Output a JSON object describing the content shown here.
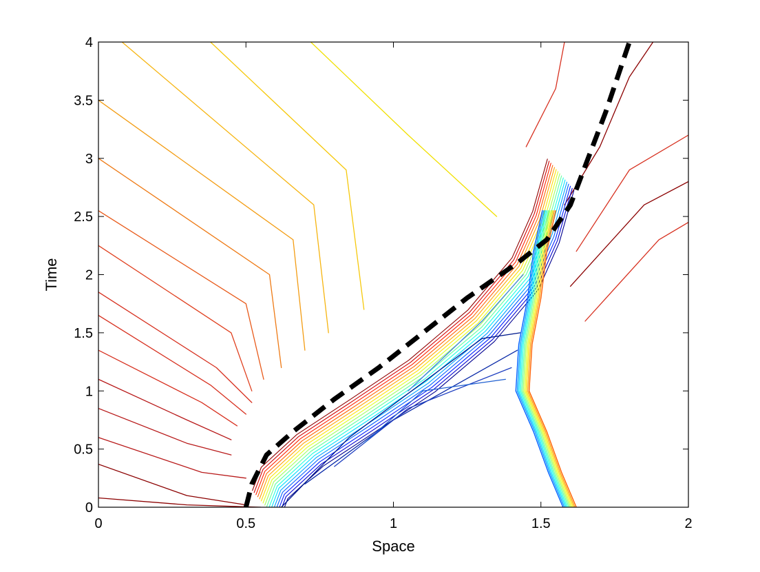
{
  "chart_data": {
    "type": "contour",
    "title": "",
    "xlabel": "Space",
    "ylabel": "Time",
    "xlim": [
      0,
      2
    ],
    "ylim": [
      0,
      4
    ],
    "xticks": [
      "0",
      "0.5",
      "1",
      "1.5",
      "2"
    ],
    "yticks": [
      "0",
      "0.5",
      "1",
      "1.5",
      "2",
      "2.5",
      "3",
      "3.5",
      "4"
    ],
    "xtick_values": [
      0,
      0.5,
      1,
      1.5,
      2
    ],
    "ytick_values": [
      0,
      0.5,
      1,
      1.5,
      2,
      2.5,
      3,
      3.5,
      4
    ],
    "grid": false,
    "colormap": "jet",
    "colors": {
      "dark_red": "#8b0000",
      "red": "#d7301f",
      "orange": "#f39c12",
      "yellow": "#f1e000",
      "cyan": "#00c8e6",
      "blue": "#1f5fd0",
      "dark_blue": "#001a8c",
      "dashed": "#000000"
    },
    "dashed_curve": [
      [
        0.5,
        0.0
      ],
      [
        0.52,
        0.2
      ],
      [
        0.57,
        0.45
      ],
      [
        0.66,
        0.65
      ],
      [
        0.8,
        0.93
      ],
      [
        0.95,
        1.2
      ],
      [
        1.1,
        1.5
      ],
      [
        1.25,
        1.8
      ],
      [
        1.42,
        2.1
      ],
      [
        1.52,
        2.3
      ],
      [
        1.6,
        2.6
      ],
      [
        1.66,
        3.0
      ],
      [
        1.72,
        3.4
      ],
      [
        1.8,
        4.0
      ]
    ],
    "shock_left_front": [
      [
        0.57,
        0.0
      ],
      [
        0.6,
        0.2
      ],
      [
        0.72,
        0.48
      ],
      [
        0.9,
        0.78
      ],
      [
        1.1,
        1.12
      ],
      [
        1.3,
        1.55
      ],
      [
        1.45,
        2.0
      ],
      [
        1.52,
        2.4
      ],
      [
        1.57,
        2.85
      ]
    ],
    "shock_right_front": [
      [
        1.6,
        0.0
      ],
      [
        1.55,
        0.3
      ],
      [
        1.5,
        0.65
      ],
      [
        1.44,
        1.0
      ],
      [
        1.45,
        1.4
      ],
      [
        1.48,
        1.8
      ],
      [
        1.5,
        2.2
      ],
      [
        1.53,
        2.55
      ]
    ],
    "red_family_lines": [
      [
        [
          0.0,
          0.08
        ],
        [
          0.3,
          0.02
        ],
        [
          0.55,
          0.0
        ]
      ],
      [
        [
          0.0,
          0.37
        ],
        [
          0.3,
          0.1
        ],
        [
          0.5,
          0.02
        ]
      ],
      [
        [
          0.0,
          0.6
        ],
        [
          0.35,
          0.3
        ],
        [
          0.5,
          0.25
        ]
      ],
      [
        [
          0.0,
          0.85
        ],
        [
          0.3,
          0.55
        ],
        [
          0.45,
          0.45
        ]
      ],
      [
        [
          0.0,
          1.1
        ],
        [
          0.3,
          0.75
        ],
        [
          0.45,
          0.58
        ]
      ],
      [
        [
          0.0,
          1.35
        ],
        [
          0.35,
          0.9
        ],
        [
          0.47,
          0.7
        ]
      ],
      [
        [
          0.0,
          1.65
        ],
        [
          0.38,
          1.05
        ],
        [
          0.5,
          0.8
        ]
      ],
      [
        [
          0.0,
          1.85
        ],
        [
          0.4,
          1.2
        ],
        [
          0.52,
          0.9
        ]
      ]
    ],
    "orange_family_lines": [
      [
        [
          0.0,
          2.25
        ],
        [
          0.45,
          1.5
        ],
        [
          0.52,
          1.0
        ]
      ],
      [
        [
          0.0,
          2.55
        ],
        [
          0.5,
          1.75
        ],
        [
          0.56,
          1.1
        ]
      ],
      [
        [
          0.0,
          3.0
        ],
        [
          0.58,
          2.0
        ],
        [
          0.62,
          1.2
        ]
      ],
      [
        [
          0.0,
          3.5
        ],
        [
          0.66,
          2.3
        ],
        [
          0.7,
          1.35
        ]
      ],
      [
        [
          0.08,
          4.0
        ],
        [
          0.73,
          2.6
        ],
        [
          0.78,
          1.5
        ]
      ],
      [
        [
          0.38,
          4.0
        ],
        [
          0.84,
          2.9
        ],
        [
          0.9,
          1.7
        ]
      ],
      [
        [
          0.72,
          4.0
        ],
        [
          1.05,
          3.2
        ],
        [
          1.35,
          2.5
        ]
      ]
    ],
    "upper_right_red_lines": [
      [
        [
          1.45,
          3.1
        ],
        [
          1.55,
          3.6
        ],
        [
          1.58,
          4.0
        ]
      ],
      [
        [
          1.58,
          2.6
        ],
        [
          1.7,
          3.1
        ],
        [
          1.8,
          3.7
        ],
        [
          1.88,
          4.0
        ]
      ],
      [
        [
          1.62,
          2.2
        ],
        [
          1.8,
          2.9
        ],
        [
          2.0,
          3.2
        ]
      ],
      [
        [
          1.6,
          1.9
        ],
        [
          1.85,
          2.6
        ],
        [
          2.0,
          2.8
        ]
      ],
      [
        [
          1.65,
          1.6
        ],
        [
          1.9,
          2.3
        ],
        [
          2.0,
          2.45
        ]
      ]
    ],
    "blue_interior_lines": [
      [
        [
          0.62,
          0.0
        ],
        [
          0.85,
          0.6
        ],
        [
          1.3,
          1.45
        ],
        [
          1.43,
          1.5
        ]
      ],
      [
        [
          0.7,
          0.2
        ],
        [
          1.0,
          0.75
        ],
        [
          1.42,
          1.35
        ]
      ],
      [
        [
          0.8,
          0.35
        ],
        [
          1.05,
          0.85
        ],
        [
          1.4,
          1.2
        ]
      ],
      [
        [
          0.9,
          0.55
        ],
        [
          1.1,
          1.0
        ],
        [
          1.38,
          1.1
        ]
      ],
      [
        [
          1.05,
          1.0
        ],
        [
          1.3,
          1.6
        ],
        [
          1.44,
          2.0
        ]
      ]
    ]
  }
}
